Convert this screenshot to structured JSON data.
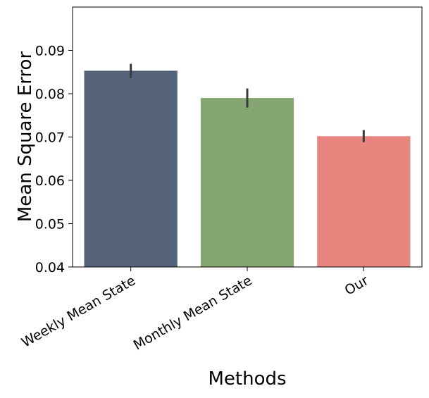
{
  "chart_data": {
    "type": "bar",
    "title": "",
    "xlabel": "Methods",
    "ylabel": "Mean Square Error",
    "categories": [
      "Weekly Mean State",
      "Monthly Mean State",
      "Our"
    ],
    "values": [
      0.0853,
      0.079,
      0.0702
    ],
    "error_low": [
      0.0836,
      0.0768,
      0.0688
    ],
    "error_high": [
      0.0869,
      0.0812,
      0.0716
    ],
    "colors": [
      "#54627a",
      "#85a673",
      "#e8857f"
    ],
    "error_color": "#3a3a3a",
    "ylim": [
      0.04,
      0.1
    ],
    "yticks": [
      "0.04",
      "0.05",
      "0.06",
      "0.07",
      "0.08",
      "0.09"
    ],
    "grid": false,
    "legend": "none"
  }
}
